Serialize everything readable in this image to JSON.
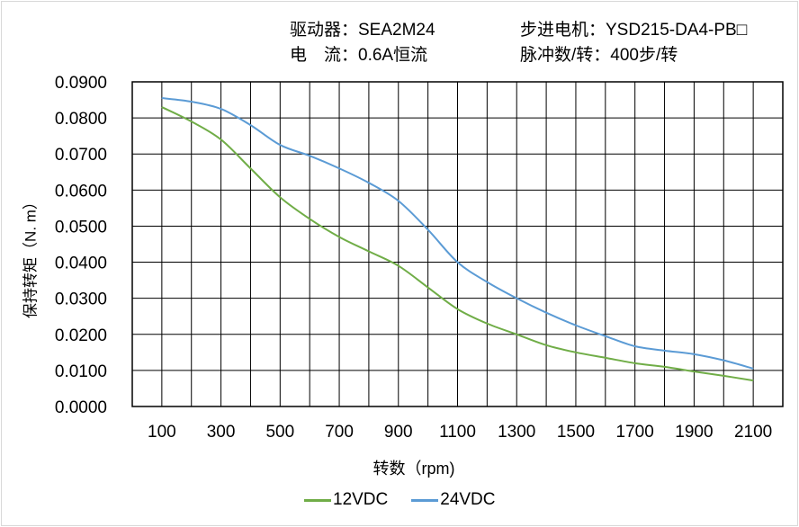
{
  "header": {
    "driver": "驱动器：SEA2M24",
    "motor": "步进电机：YSD215-DA4-PB□",
    "current": "电　流：0.6A恒流",
    "pulses": "脉冲数/转：400步/转"
  },
  "chart_data": {
    "type": "line",
    "title": "",
    "xlabel": "转数（rpm)",
    "ylabel": "保持转矩（N. m）",
    "xlim": [
      0,
      2200
    ],
    "ylim": [
      0,
      0.09
    ],
    "x_ticks": [
      "100",
      "300",
      "500",
      "700",
      "900",
      "1100",
      "1300",
      "1500",
      "1700",
      "1900",
      "2100"
    ],
    "y_ticks": [
      "0.0000",
      "0.0100",
      "0.0200",
      "0.0300",
      "0.0400",
      "0.0500",
      "0.0600",
      "0.0700",
      "0.0800",
      "0.0900"
    ],
    "grid": true,
    "legend": "bottom",
    "x": [
      100,
      200,
      300,
      400,
      500,
      600,
      700,
      800,
      900,
      1000,
      1100,
      1200,
      1300,
      1400,
      1500,
      1600,
      1700,
      1800,
      1900,
      2000,
      2100
    ],
    "series": [
      {
        "name": "12VDC",
        "color": "#70ad47",
        "values": [
          0.083,
          0.079,
          0.074,
          0.066,
          0.058,
          0.052,
          0.047,
          0.043,
          0.039,
          0.033,
          0.027,
          0.023,
          0.02,
          0.017,
          0.015,
          0.0135,
          0.012,
          0.011,
          0.0097,
          0.0085,
          0.0072
        ]
      },
      {
        "name": "24VDC",
        "color": "#5b9bd5",
        "values": [
          0.0855,
          0.0845,
          0.0825,
          0.078,
          0.0725,
          0.0695,
          0.066,
          0.062,
          0.057,
          0.049,
          0.04,
          0.0345,
          0.03,
          0.026,
          0.0225,
          0.0195,
          0.0167,
          0.0155,
          0.0145,
          0.0128,
          0.0105
        ]
      }
    ]
  }
}
